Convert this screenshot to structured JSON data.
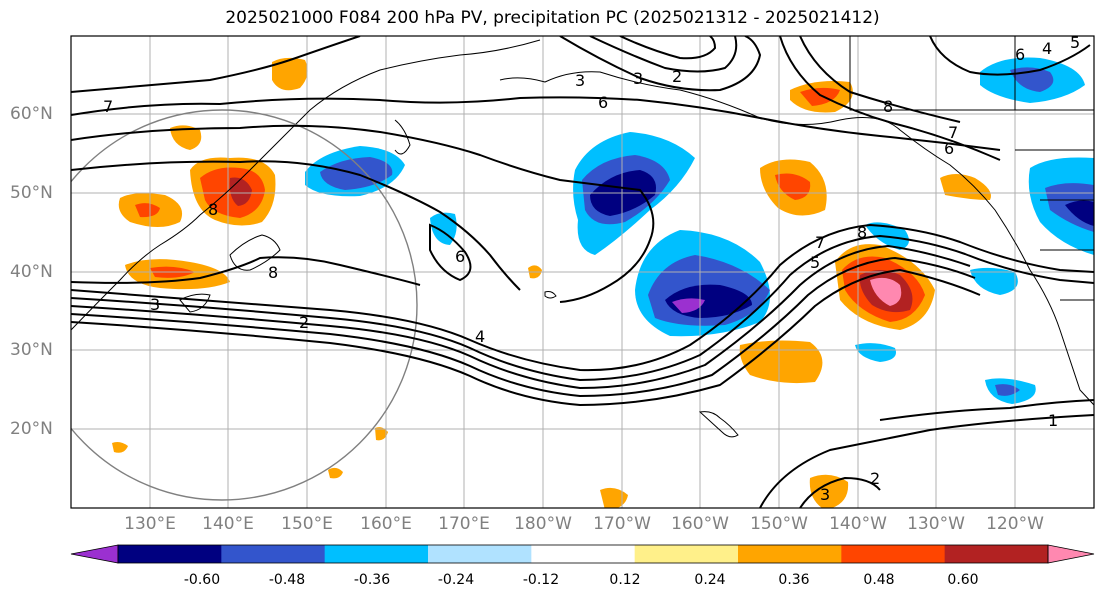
{
  "title": "2025021000 F084 200 hPa PV, precipitation PC (2025021312 - 2025021412)",
  "lat_labels": [
    "60°N",
    "50°N",
    "40°N",
    "30°N",
    "20°N"
  ],
  "lon_labels": [
    "130°E",
    "140°E",
    "150°E",
    "160°E",
    "170°E",
    "180°W",
    "170°W",
    "160°W",
    "150°W",
    "140°W",
    "130°W",
    "120°W"
  ],
  "contour_labels": [
    "7",
    "3",
    "4",
    "3",
    "2",
    "6",
    "8",
    "7",
    "6",
    "8",
    "3",
    "2",
    "4",
    "8",
    "7",
    "8",
    "5",
    "6",
    "1",
    "2",
    "3",
    "5",
    "6"
  ],
  "colorbar": {
    "colors": [
      "#9b30d0",
      "#000080",
      "#3355cc",
      "#00bfff",
      "#b0e2ff",
      "#ffffff",
      "#fff08a",
      "#ffa500",
      "#ff4500",
      "#b22222",
      "#ff88b0"
    ],
    "tick_labels": [
      "-0.60",
      "-0.48",
      "-0.36",
      "-0.24",
      "-0.12",
      "0.12",
      "0.24",
      "0.36",
      "0.48",
      "0.60"
    ]
  }
}
